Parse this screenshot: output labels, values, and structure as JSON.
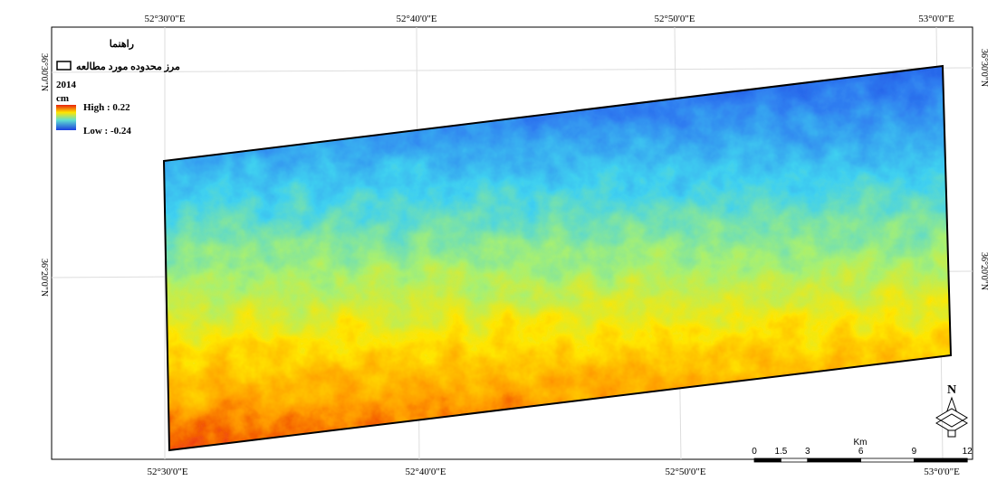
{
  "map": {
    "top_labels": [
      "52°30'0\"E",
      "52°40'0\"E",
      "52°50'0\"E",
      "53°0'0\"E"
    ],
    "bottom_labels": [
      "52°30'0\"E",
      "52°40'0\"E",
      "52°50'0\"E",
      "53°0'0\"E"
    ],
    "left_labels": [
      "36°30'0\"N",
      "36°20'0\"N"
    ],
    "right_labels": [
      "36°30'0\"N",
      "36°20'0\"N"
    ],
    "legend": {
      "title": "راهنما",
      "boundary": "مرز محدوده مورد مطالعه",
      "year": "2014",
      "unit": "cm",
      "high": "High : 0.22",
      "low": "Low : -0.24"
    },
    "north": "N",
    "scale": {
      "unit": "Km",
      "ticks": [
        0,
        1.5,
        3,
        6,
        9,
        12
      ]
    }
  }
}
